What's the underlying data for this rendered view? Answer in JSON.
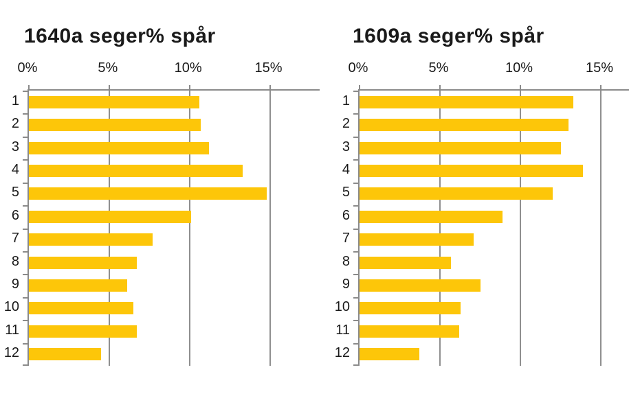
{
  "page": {
    "background": "#ffffff"
  },
  "colors": {
    "bar": "#FDC609",
    "gridline": "#8F8F8F",
    "axis": "#8A8A8A",
    "text": "#1A1A1A"
  },
  "chart_data": [
    {
      "type": "bar",
      "orientation": "horizontal",
      "title": "1640a seger% spår",
      "categories": [
        "1",
        "2",
        "3",
        "4",
        "5",
        "6",
        "7",
        "8",
        "9",
        "10",
        "11",
        "12"
      ],
      "values": [
        10.6,
        10.7,
        11.2,
        13.3,
        14.8,
        10.1,
        7.7,
        6.7,
        6.1,
        6.5,
        6.7,
        4.5
      ],
      "x_ticks": [
        0,
        5,
        10,
        15
      ],
      "x_tick_labels": [
        "0%",
        "5%",
        "10%",
        "15%"
      ],
      "xlim": [
        0,
        18.1
      ],
      "grid": true,
      "legend": false,
      "axis_position": "top",
      "bar_color": "#FDC609"
    },
    {
      "type": "bar",
      "orientation": "horizontal",
      "title": "1609a seger% spår",
      "categories": [
        "1",
        "2",
        "3",
        "4",
        "5",
        "6",
        "7",
        "8",
        "9",
        "10",
        "11",
        "12"
      ],
      "values": [
        13.3,
        13.0,
        12.5,
        13.9,
        12.0,
        8.9,
        7.1,
        5.7,
        7.5,
        6.3,
        6.2,
        3.7
      ],
      "x_ticks": [
        0,
        5,
        10,
        15
      ],
      "x_tick_labels": [
        "0%",
        "5%",
        "10%",
        "15%"
      ],
      "xlim": [
        0,
        16.75
      ],
      "grid": true,
      "legend": false,
      "axis_position": "top",
      "bar_color": "#FDC609"
    }
  ]
}
